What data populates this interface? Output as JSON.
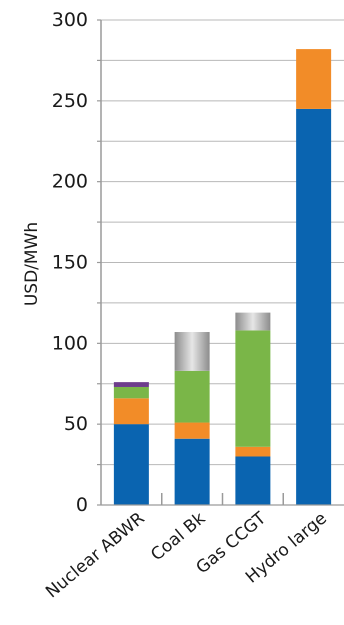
{
  "chart_data": {
    "type": "bar",
    "stacked": true,
    "ylabel": "USD/MWh",
    "xlabel": "",
    "ylim": [
      0,
      300
    ],
    "yticks": [
      "0",
      "50",
      "100",
      "150",
      "200",
      "250",
      "300"
    ],
    "grid": true,
    "categories": [
      "Nuclear ABWR",
      "Coal Bk",
      "Gas CCGT",
      "Hydro large"
    ],
    "series": [
      {
        "color": "#0a64b0",
        "values": [
          50,
          41,
          30,
          245
        ]
      },
      {
        "color": "#f28c28",
        "values": [
          16,
          10,
          6,
          37
        ]
      },
      {
        "color": "#7ab648",
        "values": [
          7,
          32,
          72,
          0
        ]
      },
      {
        "color": "#6e3d8c",
        "values": [
          3,
          0,
          0,
          0
        ]
      },
      {
        "color": "#a6a6a6",
        "values": [
          0,
          24,
          11,
          0
        ]
      }
    ]
  }
}
